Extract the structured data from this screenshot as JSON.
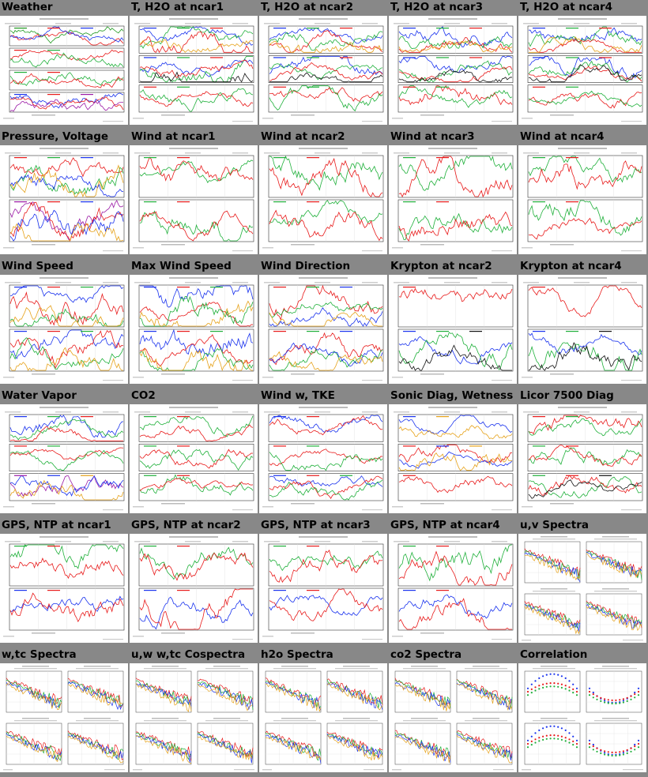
{
  "cells": [
    {
      "title": "Weather",
      "kind": "ts",
      "panels": [
        [
          "#1f9a1f",
          "#e81a1a",
          "#1a33ee"
        ],
        [
          "#e81a1a",
          "#1fb03a"
        ],
        [
          "#1fb03a",
          "#e81a1a"
        ],
        [
          "#1a33ee",
          "#e81a1a",
          "#9b1aa6"
        ]
      ]
    },
    {
      "title": "T, H2O at ncar1",
      "kind": "ts",
      "panels": [
        [
          "#1a33ee",
          "#1fb03a",
          "#e81a1a",
          "#e6a21a"
        ],
        [
          "#1a33ee",
          "#1fb03a",
          "#e81a1a",
          "#111111"
        ],
        [
          "#e81a1a",
          "#1fb03a"
        ]
      ]
    },
    {
      "title": "T, H2O at ncar2",
      "kind": "ts",
      "panels": [
        [
          "#1a33ee",
          "#1fb03a",
          "#e81a1a",
          "#e6a21a"
        ],
        [
          "#1a33ee",
          "#1fb03a",
          "#e81a1a",
          "#111111"
        ],
        [
          "#e81a1a",
          "#1fb03a"
        ]
      ]
    },
    {
      "title": "T, H2O at ncar3",
      "kind": "ts",
      "panels": [
        [
          "#1a33ee",
          "#1fb03a",
          "#e81a1a",
          "#e6a21a"
        ],
        [
          "#1a33ee",
          "#1fb03a",
          "#e81a1a",
          "#111111"
        ],
        [
          "#e81a1a",
          "#1fb03a"
        ]
      ]
    },
    {
      "title": "T, H2O at ncar4",
      "kind": "ts",
      "panels": [
        [
          "#1a33ee",
          "#1fb03a",
          "#e81a1a",
          "#e6a21a"
        ],
        [
          "#1a33ee",
          "#1fb03a",
          "#e81a1a",
          "#111111"
        ],
        [
          "#e81a1a",
          "#1fb03a"
        ]
      ]
    },
    {
      "title": "Pressure, Voltage",
      "kind": "ts",
      "panels": [
        [
          "#e81a1a",
          "#1fb03a",
          "#1a33ee",
          "#e6a21a"
        ],
        [
          "#9b1aa6",
          "#e81a1a",
          "#1a33ee",
          "#e6a21a"
        ]
      ]
    },
    {
      "title": "Wind at ncar1",
      "kind": "ts",
      "panels": [
        [
          "#1fb03a",
          "#e81a1a"
        ],
        [
          "#1fb03a",
          "#e81a1a"
        ]
      ]
    },
    {
      "title": "Wind at ncar2",
      "kind": "ts",
      "panels": [
        [
          "#1fb03a",
          "#e81a1a"
        ],
        [
          "#1fb03a",
          "#e81a1a"
        ]
      ]
    },
    {
      "title": "Wind at ncar3",
      "kind": "ts",
      "panels": [
        [
          "#1fb03a",
          "#e81a1a"
        ],
        [
          "#1fb03a",
          "#e81a1a"
        ]
      ]
    },
    {
      "title": "Wind at ncar4",
      "kind": "ts",
      "panels": [
        [
          "#1fb03a",
          "#e81a1a"
        ],
        [
          "#1fb03a",
          "#e81a1a"
        ]
      ]
    },
    {
      "title": "Wind Speed",
      "kind": "ts",
      "panels": [
        [
          "#1a33ee",
          "#e81a1a",
          "#1fb03a",
          "#e6a21a"
        ],
        [
          "#1a33ee",
          "#e81a1a",
          "#1fb03a",
          "#e6a21a"
        ]
      ]
    },
    {
      "title": "Max Wind Speed",
      "kind": "ts",
      "panels": [
        [
          "#1a33ee",
          "#e81a1a",
          "#1fb03a",
          "#e6a21a"
        ],
        [
          "#1a33ee",
          "#e81a1a",
          "#1fb03a",
          "#e6a21a"
        ]
      ]
    },
    {
      "title": "Wind Direction",
      "kind": "ts",
      "panels": [
        [
          "#e81a1a",
          "#1fb03a",
          "#1a33ee",
          "#e6a21a"
        ],
        [
          "#e81a1a",
          "#1fb03a",
          "#1a33ee",
          "#e6a21a"
        ]
      ]
    },
    {
      "title": "Krypton at ncar2",
      "kind": "ts",
      "panels": [
        [
          "#e81a1a"
        ],
        [
          "#1a33ee",
          "#1fb03a",
          "#111111"
        ]
      ]
    },
    {
      "title": "Krypton at ncar4",
      "kind": "ts",
      "panels": [
        [
          "#e81a1a"
        ],
        [
          "#1a33ee",
          "#1fb03a",
          "#111111"
        ]
      ]
    },
    {
      "title": "Water Vapor",
      "kind": "ts",
      "panels": [
        [
          "#1a33ee",
          "#1fb03a",
          "#e81a1a"
        ],
        [
          "#e81a1a",
          "#1fb03a"
        ],
        [
          "#9b1aa6",
          "#1a33ee",
          "#e6a21a"
        ]
      ]
    },
    {
      "title": "CO2",
      "kind": "ts",
      "panels": [
        [
          "#1fb03a",
          "#e81a1a"
        ],
        [
          "#1fb03a",
          "#e81a1a"
        ],
        [
          "#1fb03a",
          "#e81a1a"
        ]
      ]
    },
    {
      "title": "Wind w, TKE",
      "kind": "ts",
      "panels": [
        [
          "#1a33ee",
          "#e81a1a"
        ],
        [
          "#e81a1a",
          "#1fb03a"
        ],
        [
          "#1a33ee",
          "#e81a1a",
          "#1fb03a"
        ]
      ]
    },
    {
      "title": "Sonic Diag, Wetness",
      "kind": "ts",
      "panels": [
        [
          "#1a33ee",
          "#e6a21a"
        ],
        [
          "#e81a1a",
          "#1a33ee",
          "#e6a21a"
        ],
        [
          "#e81a1a"
        ]
      ]
    },
    {
      "title": "Licor 7500 Diag",
      "kind": "ts",
      "panels": [
        [
          "#e81a1a",
          "#1fb03a"
        ],
        [
          "#1fb03a",
          "#e81a1a"
        ],
        [
          "#1fb03a",
          "#e81a1a",
          "#111111"
        ]
      ]
    },
    {
      "title": "GPS, NTP at ncar1",
      "kind": "ts",
      "panels": [
        [
          "#1fb03a",
          "#e81a1a"
        ],
        [
          "#1a33ee",
          "#e81a1a"
        ]
      ]
    },
    {
      "title": "GPS, NTP at ncar2",
      "kind": "ts",
      "panels": [
        [
          "#1fb03a",
          "#e81a1a"
        ],
        [
          "#1a33ee",
          "#e81a1a"
        ]
      ]
    },
    {
      "title": "GPS, NTP at ncar3",
      "kind": "ts",
      "panels": [
        [
          "#1fb03a",
          "#e81a1a"
        ],
        [
          "#1a33ee",
          "#e81a1a"
        ]
      ]
    },
    {
      "title": "GPS, NTP at ncar4",
      "kind": "ts",
      "panels": [
        [
          "#1fb03a",
          "#e81a1a"
        ],
        [
          "#1a33ee",
          "#e81a1a"
        ]
      ]
    },
    {
      "title": "u,v Spectra",
      "kind": "spec",
      "panels": [
        [
          "#e81a1a",
          "#1fb03a",
          "#1a33ee",
          "#e6a21a"
        ]
      ]
    },
    {
      "title": "w,tc Spectra",
      "kind": "spec",
      "panels": [
        [
          "#e81a1a",
          "#1fb03a",
          "#1a33ee",
          "#e6a21a"
        ]
      ]
    },
    {
      "title": "u,w w,tc Cospectra",
      "kind": "spec",
      "panels": [
        [
          "#e81a1a",
          "#1fb03a",
          "#1a33ee",
          "#e6a21a"
        ]
      ]
    },
    {
      "title": "h2o Spectra",
      "kind": "spec",
      "panels": [
        [
          "#e81a1a",
          "#1fb03a",
          "#1a33ee",
          "#e6a21a"
        ]
      ]
    },
    {
      "title": "co2 Spectra",
      "kind": "spec",
      "panels": [
        [
          "#e81a1a",
          "#1fb03a",
          "#1a33ee",
          "#e6a21a"
        ]
      ]
    },
    {
      "title": "Correlation",
      "kind": "corr",
      "panels": [
        [
          "#1a33ee",
          "#e81a1a",
          "#1fb03a"
        ]
      ]
    }
  ]
}
